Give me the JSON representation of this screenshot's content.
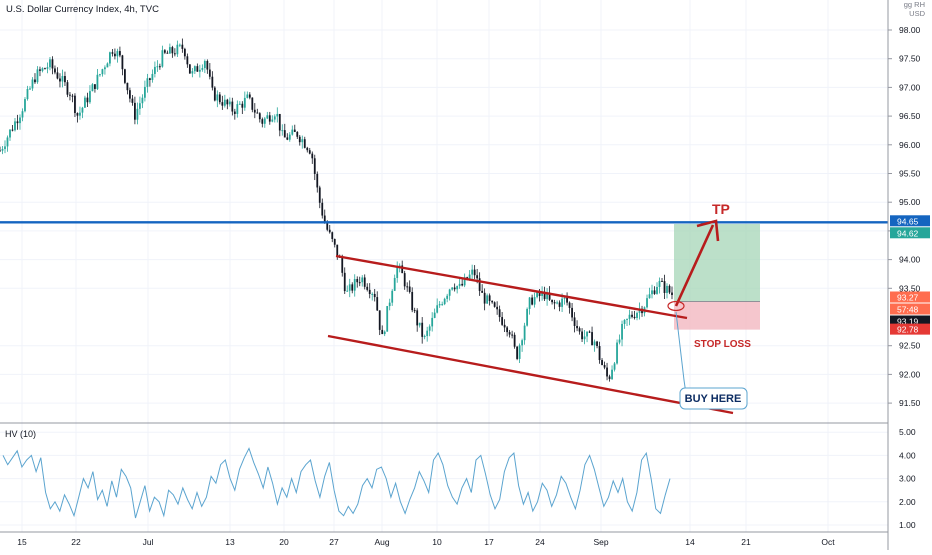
{
  "header": {
    "title": "U.S. Dollar Currency Index, 4h, TVC",
    "units": [
      "gg RH",
      "USD"
    ]
  },
  "indicator": {
    "title": "HV (10)"
  },
  "colors": {
    "up": "#26a69a",
    "down": "#131722",
    "channel": "#b71c1c",
    "resistance": "#1565c0",
    "tp_zone": "#a5d6b7",
    "sl_zone": "#f3b8c1",
    "hv_line": "#5ba4cf",
    "last_price_badge": "#ff6d4f",
    "tp_price_badge": "#26a69a",
    "sl_price_badge": "#e53935",
    "level_badge": "#1565c0"
  },
  "annotations": {
    "tp": "TP",
    "stop_loss": "STOP LOSS",
    "buy_here": "BUY HERE"
  },
  "chart_data": [
    {
      "type": "candlestick",
      "title": "U.S. Dollar Currency Index, 4h, TVC",
      "ylim": [
        91.3,
        98.2
      ],
      "y_ticks": [
        "98.00",
        "97.50",
        "97.00",
        "96.50",
        "96.00",
        "95.50",
        "95.00",
        "94.50",
        "94.00",
        "93.50",
        "92.50",
        "92.00",
        "91.50"
      ],
      "x_ticks": [
        "15",
        "22",
        "Jul",
        "13",
        "20",
        "27",
        "Aug",
        "10",
        "17",
        "24",
        "Sep",
        "14",
        "21",
        "Oct"
      ],
      "price_path": [
        [
          0,
          95.9
        ],
        [
          3,
          96.6
        ],
        [
          5,
          97.2
        ],
        [
          7,
          97.4
        ],
        [
          10,
          96.9
        ],
        [
          11,
          96.5
        ],
        [
          14,
          97.2
        ],
        [
          16,
          97.7
        ],
        [
          17,
          97.5
        ],
        [
          19,
          96.5
        ],
        [
          21,
          97.1
        ],
        [
          23,
          97.55
        ],
        [
          26,
          97.7
        ],
        [
          27,
          97.2
        ],
        [
          29,
          97.5
        ],
        [
          30,
          96.9
        ],
        [
          33,
          96.6
        ],
        [
          35,
          96.8
        ],
        [
          37,
          96.4
        ],
        [
          39,
          96.6
        ],
        [
          40,
          96.1
        ],
        [
          42,
          96.2
        ],
        [
          44,
          95.9
        ],
        [
          45,
          95.1
        ],
        [
          46,
          94.6
        ],
        [
          48,
          94.0
        ],
        [
          49,
          93.4
        ],
        [
          51,
          93.7
        ],
        [
          53,
          93.4
        ],
        [
          54,
          92.6
        ],
        [
          56,
          93.9
        ],
        [
          57,
          93.7
        ],
        [
          59,
          92.9
        ],
        [
          60,
          92.6
        ],
        [
          62,
          93.2
        ],
        [
          64,
          93.6
        ],
        [
          65,
          93.5
        ],
        [
          67,
          93.8
        ],
        [
          68,
          93.4
        ],
        [
          70,
          93.1
        ],
        [
          72,
          92.8
        ],
        [
          73,
          92.3
        ],
        [
          75,
          93.3
        ],
        [
          77,
          93.4
        ],
        [
          78,
          93.2
        ],
        [
          80,
          93.3
        ],
        [
          82,
          92.7
        ],
        [
          84,
          92.6
        ],
        [
          85,
          92.2
        ],
        [
          86,
          91.9
        ],
        [
          88,
          92.8
        ],
        [
          89,
          93.0
        ],
        [
          91,
          93.2
        ],
        [
          93,
          93.6
        ],
        [
          95,
          93.4
        ]
      ],
      "levels": {
        "resistance": 94.65,
        "tp": 94.62,
        "entry": 93.27,
        "stop": 92.78
      },
      "price_labels": {
        "resistance": "94.65",
        "tp": "94.62",
        "last": "93.27",
        "countdown": "57:48",
        "current": "93.19",
        "stop": "92.78"
      }
    },
    {
      "type": "line",
      "title": "HV (10)",
      "ylim": [
        0.8,
        5.2
      ],
      "y_ticks": [
        "5.00",
        "4.00",
        "3.00",
        "2.00",
        "1.00"
      ],
      "values": [
        4.0,
        3.6,
        3.9,
        4.2,
        3.5,
        3.8,
        4.0,
        3.3,
        3.9,
        2.4,
        1.7,
        2.0,
        1.6,
        2.3,
        1.9,
        1.4,
        2.2,
        3.0,
        2.6,
        3.3,
        2.1,
        2.5,
        1.8,
        2.9,
        2.2,
        3.4,
        3.1,
        2.6,
        1.3,
        2.0,
        2.7,
        1.6,
        2.2,
        2.0,
        1.4,
        2.5,
        2.3,
        1.9,
        2.6,
        2.1,
        1.7,
        2.4,
        1.8,
        2.2,
        3.1,
        2.8,
        3.6,
        3.8,
        3.0,
        2.5,
        3.4,
        3.9,
        4.3,
        3.7,
        3.2,
        2.6,
        3.5,
        2.8,
        1.9,
        2.6,
        2.2,
        3.0,
        2.4,
        3.3,
        3.6,
        3.8,
        2.9,
        2.2,
        3.1,
        3.7,
        2.5,
        1.6,
        1.4,
        1.8,
        1.5,
        1.9,
        2.7,
        3.0,
        2.6,
        3.4,
        3.5,
        3.0,
        2.2,
        2.8,
        2.0,
        1.5,
        2.1,
        2.6,
        3.3,
        2.9,
        2.4,
        3.8,
        4.1,
        3.6,
        2.7,
        2.2,
        1.9,
        2.6,
        3.0,
        2.4,
        3.8,
        4.0,
        3.2,
        2.3,
        1.7,
        2.1,
        3.3,
        3.9,
        4.1,
        2.7,
        1.9,
        2.4,
        1.6,
        2.0,
        2.8,
        2.5,
        1.8,
        2.3,
        3.1,
        2.8,
        2.2,
        1.7,
        2.5,
        3.6,
        4.0,
        3.4,
        2.6,
        1.8,
        2.2,
        2.9,
        2.4,
        3.0,
        2.0,
        1.6,
        2.4,
        3.8,
        4.1,
        3.0,
        1.7,
        1.5,
        2.3,
        3.0
      ]
    }
  ]
}
